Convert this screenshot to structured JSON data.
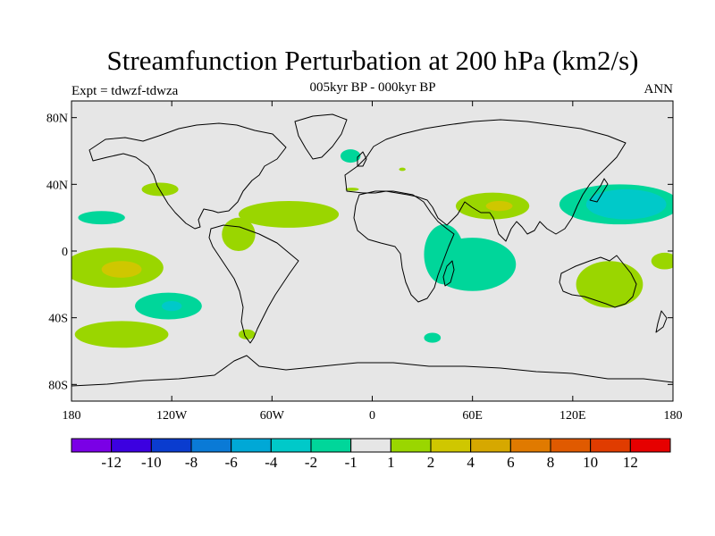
{
  "title": "Streamfunction Perturbation at 200 hPa (km2/s)",
  "left_string": "Expt = tdwzf-tdwza",
  "center_string": "005kyr BP - 000kyr BP",
  "right_string": "ANN",
  "colors": {
    "land_background": "#e6e6e6",
    "coastline": "#000000",
    "bin_1_2": "#9ad600",
    "bin_2_4": "#cfc700",
    "bin_m2_m1": "#00d69a",
    "bin_m4_m2": "#00c9c9"
  },
  "chart_data": {
    "type": "map",
    "projection": "cylindrical-equidistant",
    "lon_range": [
      -180,
      180
    ],
    "lat_range": [
      -90,
      90
    ],
    "x_ticks": [
      {
        "lon": -180,
        "label": "180"
      },
      {
        "lon": -120,
        "label": "120W"
      },
      {
        "lon": -60,
        "label": "60W"
      },
      {
        "lon": 0,
        "label": "0"
      },
      {
        "lon": 60,
        "label": "60E"
      },
      {
        "lon": 120,
        "label": "120E"
      },
      {
        "lon": 180,
        "label": "180"
      }
    ],
    "y_ticks": [
      {
        "lat": 80,
        "label": "80N"
      },
      {
        "lat": 40,
        "label": "40N"
      },
      {
        "lat": 0,
        "label": "0"
      },
      {
        "lat": -40,
        "label": "40S"
      },
      {
        "lat": -80,
        "label": "80S"
      }
    ],
    "colorbar": {
      "colors": [
        "#7a00e6",
        "#3c00e0",
        "#0a3ccf",
        "#0a7ad6",
        "#00a8d6",
        "#00c9c9",
        "#00d69a",
        "#e6e6e6",
        "#9ad600",
        "#cfc700",
        "#d6a800",
        "#e07a00",
        "#e05a00",
        "#e03c00",
        "#e60000"
      ],
      "labels": [
        "-12",
        "-10",
        "-8",
        "-6",
        "-4",
        "-2",
        "-1",
        "1",
        "2",
        "4",
        "6",
        "8",
        "10",
        "12"
      ]
    },
    "regions": [
      {
        "lon": 148,
        "lat": 28,
        "rx": 36,
        "ry": 12,
        "bin": "bin_m2_m1"
      },
      {
        "lon": 152,
        "lat": 28,
        "rx": 24,
        "ry": 9,
        "bin": "bin_m4_m2"
      },
      {
        "lon": 60,
        "lat": -8,
        "rx": 26,
        "ry": 16,
        "bin": "bin_m2_m1"
      },
      {
        "lon": 43,
        "lat": -2,
        "rx": 12,
        "ry": 18,
        "bin": "bin_m2_m1"
      },
      {
        "lon": 72,
        "lat": 27,
        "rx": 22,
        "ry": 8,
        "bin": "bin_1_2"
      },
      {
        "lon": 76,
        "lat": 27,
        "rx": 8,
        "ry": 3,
        "bin": "bin_2_4"
      },
      {
        "lon": -50,
        "lat": 22,
        "rx": 30,
        "ry": 8,
        "bin": "bin_1_2"
      },
      {
        "lon": -80,
        "lat": 10,
        "rx": 10,
        "ry": 10,
        "bin": "bin_1_2"
      },
      {
        "lon": -155,
        "lat": -10,
        "rx": 30,
        "ry": 12,
        "bin": "bin_1_2"
      },
      {
        "lon": -150,
        "lat": -11,
        "rx": 12,
        "ry": 5,
        "bin": "bin_2_4"
      },
      {
        "lon": -150,
        "lat": -50,
        "rx": 28,
        "ry": 8,
        "bin": "bin_1_2"
      },
      {
        "lon": -122,
        "lat": -33,
        "rx": 20,
        "ry": 8,
        "bin": "bin_m2_m1"
      },
      {
        "lon": -120,
        "lat": -33,
        "rx": 6,
        "ry": 3,
        "bin": "bin_m4_m2"
      },
      {
        "lon": 142,
        "lat": -20,
        "rx": 20,
        "ry": 14,
        "bin": "bin_1_2"
      },
      {
        "lon": 175,
        "lat": -6,
        "rx": 8,
        "ry": 5,
        "bin": "bin_1_2"
      },
      {
        "lon": -127,
        "lat": 37,
        "rx": 11,
        "ry": 4,
        "bin": "bin_1_2"
      },
      {
        "lon": -162,
        "lat": 20,
        "rx": 14,
        "ry": 4,
        "bin": "bin_m2_m1"
      },
      {
        "lon": -13,
        "lat": 57,
        "rx": 6,
        "ry": 4,
        "bin": "bin_m2_m1"
      },
      {
        "lon": 36,
        "lat": -52,
        "rx": 5,
        "ry": 3,
        "bin": "bin_m2_m1"
      },
      {
        "lon": -75,
        "lat": -50,
        "rx": 5,
        "ry": 3,
        "bin": "bin_1_2"
      },
      {
        "lon": -12,
        "lat": 37,
        "rx": 4,
        "ry": 1,
        "bin": "bin_1_2"
      },
      {
        "lon": 18,
        "lat": 49,
        "rx": 2,
        "ry": 1,
        "bin": "bin_1_2"
      }
    ]
  }
}
